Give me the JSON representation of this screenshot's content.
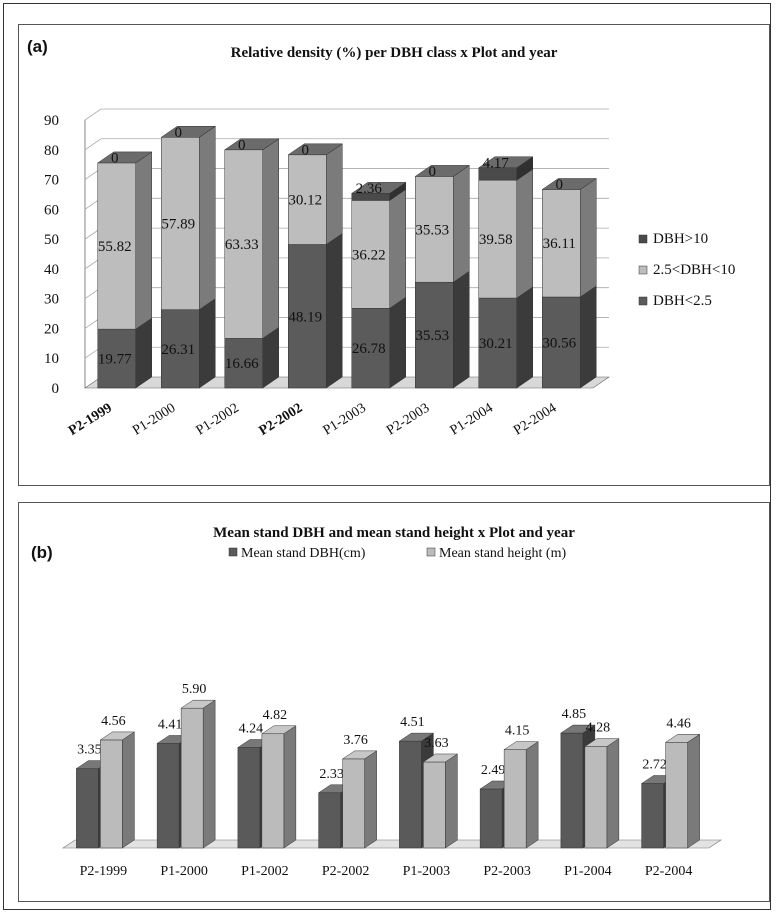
{
  "colors": {
    "dbh_small": "#5b5b5b",
    "dbh_mid": "#bdbdbd",
    "dbh_large": "#4a4a4a",
    "mean_dbh": "#5a5a5a",
    "mean_height": "#bbbbbb"
  },
  "chart_data": [
    {
      "panel_label": "(a)",
      "type": "bar",
      "stacked": true,
      "three_d": true,
      "title": "Relative density (%) per DBH class x Plot and year",
      "categories": [
        "P2-1999",
        "P1-2000",
        "P1-2002",
        "P2-2002",
        "P1-2003",
        "P2-2003",
        "P1-2004",
        "P2-2004"
      ],
      "series": [
        {
          "name": "DBH<2.5",
          "values": [
            19.77,
            26.31,
            16.66,
            48.19,
            26.78,
            35.53,
            30.21,
            30.56
          ],
          "labels": [
            "19.77",
            "26.31",
            "16.66",
            "48.19",
            "26.78",
            "35.53",
            "30.21",
            "30.56"
          ]
        },
        {
          "name": "2.5<DBH<10",
          "values": [
            55.82,
            57.89,
            63.33,
            30.12,
            36.22,
            35.53,
            39.58,
            36.11
          ],
          "labels": [
            "55.82",
            "57.89",
            "63.33",
            "30.12",
            "36.22",
            "35.53",
            "39.58",
            "36.11"
          ]
        },
        {
          "name": "DBH>10",
          "values": [
            0,
            0,
            0,
            0,
            2.36,
            0,
            4.17,
            0
          ],
          "labels": [
            "0",
            "0",
            "0",
            "0",
            "2.36",
            "0",
            "4.17",
            "0"
          ]
        }
      ],
      "ylim": [
        0,
        90
      ],
      "yticks": [
        "0",
        "10",
        "20",
        "30",
        "40",
        "50",
        "60",
        "70",
        "80",
        "90"
      ],
      "grid": true,
      "legend": "right"
    },
    {
      "panel_label": "(b)",
      "type": "bar",
      "stacked": false,
      "three_d": true,
      "title": "Mean stand DBH and mean stand height x Plot and year",
      "categories": [
        "P2-1999",
        "P1-2000",
        "P1-2002",
        "P2-2002",
        "P1-2003",
        "P2-2003",
        "P1-2004",
        "P2-2004"
      ],
      "series": [
        {
          "name": "Mean stand DBH(cm)",
          "values": [
            3.35,
            4.41,
            4.24,
            2.33,
            4.51,
            2.49,
            4.85,
            2.72
          ],
          "labels": [
            "3.35",
            "4.41",
            "4.24",
            "2.33",
            "4.51",
            "2.49",
            "4.85",
            "2.72"
          ]
        },
        {
          "name": "Mean stand height (m)",
          "values": [
            4.56,
            5.9,
            4.82,
            3.76,
            3.63,
            4.15,
            4.28,
            4.46
          ],
          "labels": [
            "4.56",
            "5.90",
            "4.82",
            "3.76",
            "3.63",
            "4.15",
            "4.28",
            "4.46"
          ]
        }
      ],
      "ylim": [
        0,
        6
      ],
      "grid": false,
      "legend": "top"
    }
  ]
}
